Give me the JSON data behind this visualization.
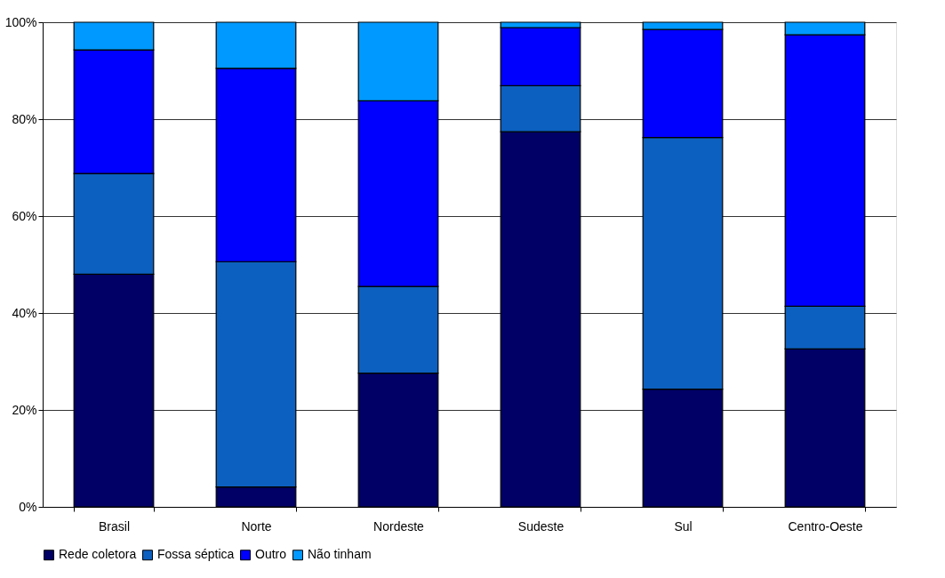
{
  "chart_data": {
    "type": "bar",
    "stacked": true,
    "categories": [
      "Brasil",
      "Norte",
      "Nordeste",
      "Sudeste",
      "Sul",
      "Centro-Oeste"
    ],
    "series": [
      {
        "name": "Rede coletora",
        "color": "#000066",
        "values": [
          48.0,
          4.1,
          27.6,
          77.4,
          24.3,
          32.6
        ]
      },
      {
        "name": "Fossa séptica",
        "color": "#0c60c0",
        "values": [
          20.8,
          46.5,
          17.9,
          9.5,
          51.9,
          8.8
        ]
      },
      {
        "name": "Outro",
        "color": "#0000ff",
        "values": [
          25.5,
          39.9,
          38.3,
          12.0,
          22.3,
          56.0
        ]
      },
      {
        "name": "Não tinham",
        "color": "#0099ff",
        "values": [
          5.7,
          9.5,
          16.2,
          1.1,
          1.5,
          2.6
        ]
      }
    ],
    "ylim": [
      0,
      100
    ],
    "yticks": [
      {
        "value": 0,
        "label": "0%"
      },
      {
        "value": 20,
        "label": "20%"
      },
      {
        "value": 40,
        "label": "40%"
      },
      {
        "value": 60,
        "label": "60%"
      },
      {
        "value": 80,
        "label": "80%"
      },
      {
        "value": 100,
        "label": "100%"
      }
    ],
    "grid": "y",
    "legend": "bottom"
  }
}
